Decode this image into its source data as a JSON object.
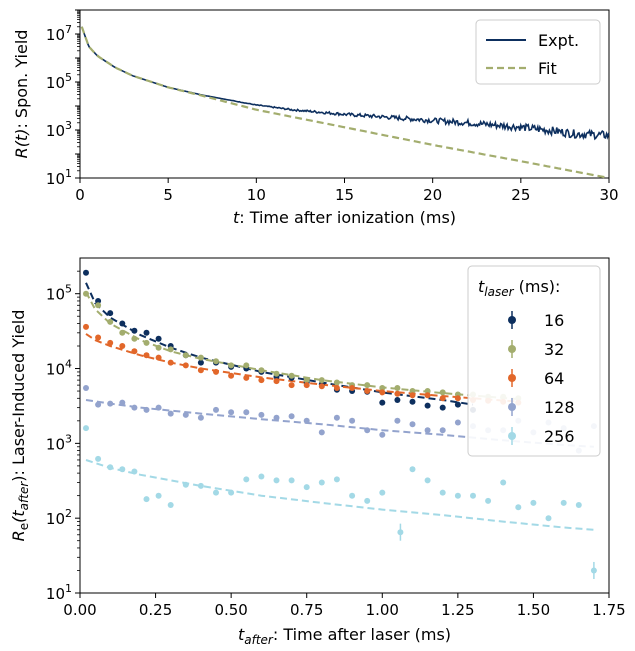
{
  "chart_data": [
    {
      "type": "line",
      "xlabel": "t: Time after ionization (ms)",
      "xlabel_parts": {
        "symbol": "t",
        "rest": ": Time after ionization (ms)"
      },
      "ylabel": "R(t): Spon. Yield",
      "ylabel_parts": {
        "symbol": "R(t)",
        "rest": ": Spon. Yield"
      },
      "xlim": [
        0,
        30
      ],
      "ylim": [
        10,
        100000000
      ],
      "yscale": "log",
      "xticks": [
        "0",
        "5",
        "10",
        "15",
        "20",
        "25",
        "30"
      ],
      "xtick_values": [
        0,
        5,
        10,
        15,
        20,
        25,
        30
      ],
      "yticks": [
        {
          "base": "10",
          "exp": "1",
          "value": 10
        },
        {
          "base": "10",
          "exp": "3",
          "value": 1000
        },
        {
          "base": "10",
          "exp": "5",
          "value": 100000
        },
        {
          "base": "10",
          "exp": "7",
          "value": 10000000
        }
      ],
      "legend_position": "top-right",
      "series": [
        {
          "name": "Expt.",
          "color": "#0d2f5e",
          "style": "solid",
          "x": [
            0.1,
            0.5,
            1,
            2,
            3,
            5,
            7,
            10,
            12,
            15,
            17,
            20,
            22,
            25,
            27,
            28,
            30
          ],
          "y": [
            20000000,
            3000000,
            1200000,
            400000,
            180000,
            60000,
            28000,
            11000,
            7000,
            4500,
            3600,
            2500,
            2000,
            1300,
            900,
            700,
            600
          ]
        },
        {
          "name": "Fit",
          "color": "#a3ad6e",
          "style": "dashed",
          "x": [
            0.1,
            0.5,
            1,
            2,
            3,
            5,
            7,
            10,
            15,
            20,
            25,
            30
          ],
          "y": [
            20000000,
            3000000,
            1200000,
            400000,
            180000,
            60000,
            26000,
            7000,
            1300,
            240,
            50,
            10
          ]
        }
      ]
    },
    {
      "type": "scatter",
      "xlabel": "t_after: Time after laser (ms)",
      "xlabel_parts": {
        "symbol": "t",
        "sub": "after",
        "rest": ": Time after laser (ms)"
      },
      "ylabel": "R_e(t_after): Laser-Induced Yield",
      "ylabel_parts": {
        "symbol": "R",
        "sub1": "e",
        "mid": "(t",
        "sub2": "after",
        "rest": "): Laser-Induced Yield"
      },
      "xlim": [
        0,
        1.75
      ],
      "ylim": [
        10,
        300000
      ],
      "yscale": "log",
      "xticks": [
        "0.00",
        "0.25",
        "0.50",
        "0.75",
        "1.00",
        "1.25",
        "1.50",
        "1.75"
      ],
      "xtick_values": [
        0,
        0.25,
        0.5,
        0.75,
        1.0,
        1.25,
        1.5,
        1.75
      ],
      "yticks": [
        {
          "base": "10",
          "exp": "1",
          "value": 10
        },
        {
          "base": "10",
          "exp": "2",
          "value": 100
        },
        {
          "base": "10",
          "exp": "3",
          "value": 1000
        },
        {
          "base": "10",
          "exp": "4",
          "value": 10000
        },
        {
          "base": "10",
          "exp": "5",
          "value": 100000
        }
      ],
      "legend_title": {
        "symbol": "t",
        "sub": "laser",
        "rest": " (ms):"
      },
      "legend_position": "top-right",
      "series": [
        {
          "name": "16",
          "color": "#0d2f5e",
          "x": [
            0.02,
            0.06,
            0.1,
            0.14,
            0.18,
            0.22,
            0.26,
            0.3,
            0.35,
            0.4,
            0.45,
            0.5,
            0.55,
            0.6,
            0.65,
            0.7,
            0.75,
            0.8,
            0.85,
            0.9,
            0.95,
            1.0,
            1.05,
            1.1,
            1.15,
            1.2,
            1.25,
            1.3
          ],
          "y": [
            190000,
            80000,
            55000,
            40000,
            32000,
            30000,
            25000,
            20000,
            15000,
            12000,
            12000,
            10500,
            10000,
            9000,
            7800,
            7500,
            6500,
            6200,
            5200,
            5000,
            4900,
            3500,
            3800,
            3600,
            3200,
            3000,
            3300,
            2800
          ],
          "fit_x": [
            0.02,
            0.05,
            0.1,
            0.2,
            0.3,
            0.4,
            0.6,
            0.8,
            1.0,
            1.2,
            1.3
          ],
          "fit_y": [
            140000,
            75000,
            48000,
            28000,
            19000,
            14000,
            9000,
            6500,
            4800,
            3800,
            3300
          ]
        },
        {
          "name": "32",
          "color": "#a3ad6e",
          "x": [
            0.02,
            0.06,
            0.1,
            0.14,
            0.18,
            0.22,
            0.26,
            0.3,
            0.35,
            0.4,
            0.45,
            0.5,
            0.55,
            0.6,
            0.65,
            0.7,
            0.75,
            0.8,
            0.85,
            0.9,
            0.95,
            1.0,
            1.05,
            1.1,
            1.15,
            1.2,
            1.25,
            1.3,
            1.35,
            1.4,
            1.45
          ],
          "y": [
            100000,
            70000,
            42000,
            30000,
            25000,
            22000,
            19000,
            18000,
            15000,
            14000,
            12500,
            11000,
            11000,
            9500,
            8500,
            8000,
            7000,
            7000,
            6500,
            6000,
            6000,
            5500,
            5500,
            5000,
            5000,
            4800,
            4500,
            4500,
            4200,
            4200,
            4000
          ],
          "fit_x": [
            0.02,
            0.05,
            0.1,
            0.2,
            0.3,
            0.4,
            0.6,
            0.8,
            1.0,
            1.2,
            1.45
          ],
          "fit_y": [
            105000,
            62000,
            40000,
            24000,
            17000,
            13500,
            9500,
            7000,
            5600,
            4700,
            3900
          ]
        },
        {
          "name": "64",
          "color": "#e2672a",
          "x": [
            0.02,
            0.06,
            0.1,
            0.14,
            0.18,
            0.22,
            0.26,
            0.3,
            0.35,
            0.4,
            0.45,
            0.5,
            0.55,
            0.6,
            0.65,
            0.7,
            0.75,
            0.8,
            0.85,
            0.9,
            0.95,
            1.0,
            1.05,
            1.1,
            1.15,
            1.2,
            1.25,
            1.3,
            1.35,
            1.4,
            1.45
          ],
          "y": [
            36000,
            26000,
            22000,
            20000,
            17000,
            15000,
            14000,
            12000,
            11000,
            9500,
            9000,
            8000,
            7500,
            7000,
            6800,
            6000,
            6000,
            5800,
            5500,
            5500,
            5000,
            4800,
            4600,
            4400,
            4400,
            4000,
            4000,
            3800,
            3700,
            3600,
            3500
          ],
          "fit_x": [
            0.02,
            0.05,
            0.1,
            0.2,
            0.3,
            0.4,
            0.6,
            0.8,
            1.0,
            1.2,
            1.45
          ],
          "fit_y": [
            29000,
            24000,
            20000,
            15000,
            12000,
            10000,
            7600,
            6100,
            5000,
            4300,
            3600
          ]
        },
        {
          "name": "128",
          "color": "#93a3cd",
          "x": [
            0.02,
            0.06,
            0.1,
            0.14,
            0.18,
            0.22,
            0.26,
            0.3,
            0.35,
            0.4,
            0.45,
            0.5,
            0.55,
            0.6,
            0.65,
            0.7,
            0.75,
            0.8,
            0.85,
            0.9,
            0.95,
            1.0,
            1.05,
            1.1,
            1.15,
            1.2,
            1.25,
            1.3,
            1.35,
            1.4,
            1.45,
            1.5,
            1.55,
            1.6,
            1.65,
            1.7
          ],
          "y": [
            5500,
            3300,
            3400,
            3500,
            3000,
            2800,
            3000,
            2500,
            2400,
            2200,
            2800,
            2600,
            2600,
            2400,
            2200,
            2300,
            2000,
            1400,
            2200,
            2000,
            1500,
            1300,
            2000,
            1800,
            1500,
            1500,
            1900,
            1700,
            1500,
            1500,
            2000,
            1400,
            1900,
            1600,
            800,
            1700
          ],
          "fit_x": [
            0.02,
            0.1,
            0.2,
            0.4,
            0.6,
            0.8,
            1.0,
            1.2,
            1.4,
            1.6,
            1.7
          ],
          "fit_y": [
            3800,
            3400,
            3000,
            2500,
            2100,
            1800,
            1500,
            1300,
            1100,
            950,
            900
          ]
        },
        {
          "name": "256",
          "color": "#a3d9e6",
          "x": [
            0.02,
            0.06,
            0.1,
            0.14,
            0.18,
            0.22,
            0.26,
            0.3,
            0.35,
            0.4,
            0.45,
            0.5,
            0.55,
            0.6,
            0.65,
            0.7,
            0.75,
            0.8,
            0.85,
            0.9,
            0.95,
            1.0,
            1.06,
            1.1,
            1.15,
            1.2,
            1.25,
            1.3,
            1.35,
            1.4,
            1.45,
            1.5,
            1.55,
            1.6,
            1.65,
            1.7
          ],
          "y": [
            1600,
            620,
            480,
            450,
            420,
            180,
            200,
            150,
            280,
            270,
            220,
            220,
            330,
            360,
            320,
            320,
            260,
            300,
            330,
            200,
            170,
            220,
            65,
            450,
            320,
            220,
            200,
            200,
            170,
            300,
            140,
            160,
            100,
            160,
            150,
            20
          ],
          "fit_x": [
            0.02,
            0.1,
            0.2,
            0.4,
            0.6,
            0.8,
            1.0,
            1.2,
            1.4,
            1.6,
            1.7
          ],
          "fit_y": [
            600,
            470,
            380,
            270,
            200,
            160,
            130,
            110,
            90,
            75,
            70
          ]
        }
      ]
    }
  ]
}
